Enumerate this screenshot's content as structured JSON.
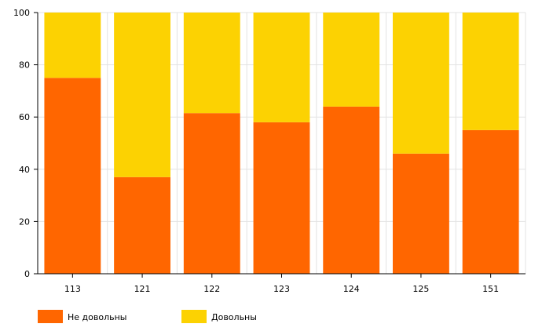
{
  "chart_data": {
    "type": "bar",
    "stacked": true,
    "categories": [
      "113",
      "121",
      "122",
      "123",
      "124",
      "125",
      "151"
    ],
    "series": [
      {
        "name": "Не довольны",
        "color": "#FF6600",
        "values": [
          75,
          37,
          61.5,
          58,
          64,
          46,
          55
        ]
      },
      {
        "name": "Довольны",
        "color": "#FCD202",
        "values": [
          25,
          63,
          38.5,
          42,
          36,
          54,
          45
        ]
      }
    ],
    "ylim": [
      0,
      100
    ],
    "yticks": [
      "0",
      "20",
      "40",
      "60",
      "80",
      "100"
    ],
    "grid": true,
    "legend_position": "bottom-left"
  }
}
